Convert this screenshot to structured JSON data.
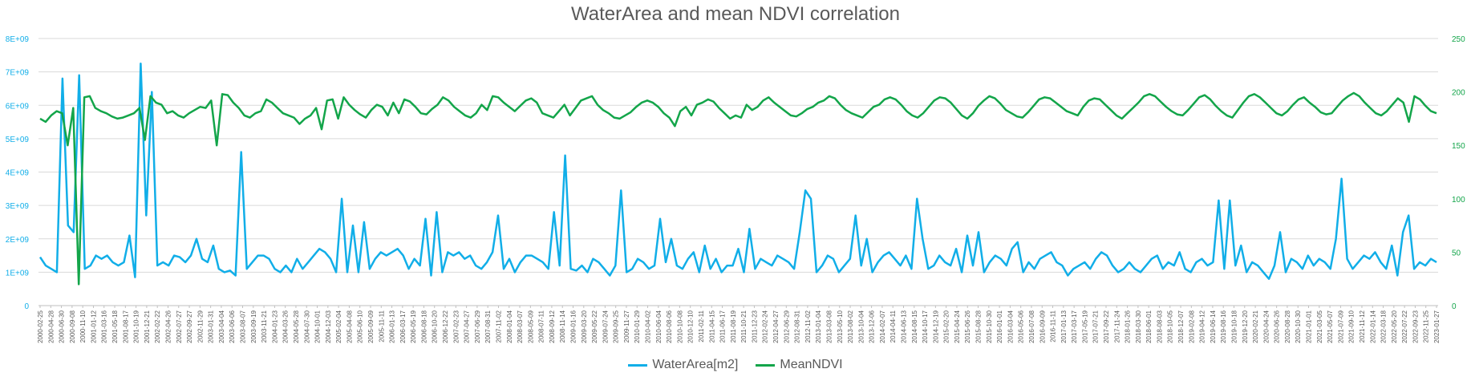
{
  "chart_data": {
    "type": "line",
    "title": "WaterArea and mean NDVI correlation",
    "xlabel": "",
    "ylabel": "",
    "y_left": {
      "min": 0,
      "max": 8000000000,
      "ticks": [
        "0",
        "1E+09",
        "2E+09",
        "3E+09",
        "4E+09",
        "5E+09",
        "6E+09",
        "7E+09",
        "8E+09"
      ],
      "color": "#11aee8"
    },
    "y_right": {
      "min": 0,
      "max": 250,
      "ticks": [
        "0",
        "50",
        "100",
        "150",
        "200",
        "250"
      ],
      "color": "#13a54a"
    },
    "grid": true,
    "legend": "bottom",
    "x_ticks": [
      "2000-02-25",
      "2000-04-28",
      "2000-06-30",
      "2000-09-08",
      "2000-11-10",
      "2001-01-12",
      "2001-03-16",
      "2001-05-18",
      "2001-08-17",
      "2001-10-19",
      "2001-12-21",
      "2002-02-22",
      "2002-04-26",
      "2002-07-27",
      "2002-09-27",
      "2002-11-29",
      "2003-01-31",
      "2003-04-04",
      "2003-06-06",
      "2003-08-07",
      "2003-09-19",
      "2003-11-21",
      "2004-01-23",
      "2004-03-26",
      "2004-05-28",
      "2004-07-30",
      "2004-10-01",
      "2004-12-03",
      "2005-02-04",
      "2005-04-08",
      "2005-06-10",
      "2005-09-09",
      "2005-11-11",
      "2006-01-13",
      "2006-03-17",
      "2006-05-19",
      "2006-08-18",
      "2006-10-20",
      "2006-12-22",
      "2007-02-23",
      "2007-04-27",
      "2007-06-29",
      "2007-08-31",
      "2007-11-02",
      "2008-01-04",
      "2008-03-07",
      "2008-05-09",
      "2008-07-11",
      "2008-09-12",
      "2008-11-14",
      "2009-01-16",
      "2009-03-20",
      "2009-05-22",
      "2009-07-24",
      "2009-09-25",
      "2009-11-27",
      "2010-01-29",
      "2010-04-02",
      "2010-06-04",
      "2010-08-06",
      "2010-10-08",
      "2010-12-10",
      "2011-02-11",
      "2011-04-15",
      "2011-06-17",
      "2011-08-19",
      "2011-10-21",
      "2011-12-23",
      "2012-02-24",
      "2012-04-27",
      "2012-06-29",
      "2012-08-31",
      "2012-11-02",
      "2013-01-04",
      "2013-03-08",
      "2013-05-10",
      "2013-08-02",
      "2013-10-04",
      "2013-12-06",
      "2014-02-07",
      "2014-04-11",
      "2014-06-13",
      "2014-08-15",
      "2014-10-17",
      "2014-12-19",
      "2015-02-20",
      "2015-04-24",
      "2015-06-26",
      "2015-08-28",
      "2015-10-30",
      "2016-01-01",
      "2016-03-04",
      "2016-05-06",
      "2016-07-08",
      "2016-09-09",
      "2016-11-11",
      "2017-01-13",
      "2017-03-17",
      "2017-05-19",
      "2017-07-21",
      "2017-09-22",
      "2017-11-24",
      "2018-01-26",
      "2018-03-30",
      "2018-06-01",
      "2018-08-03",
      "2018-10-05",
      "2018-12-07",
      "2019-02-08",
      "2019-04-12",
      "2019-06-14",
      "2019-08-16",
      "2019-10-18",
      "2019-12-20",
      "2020-02-21",
      "2020-04-24",
      "2020-06-26",
      "2020-08-28",
      "2020-10-30",
      "2021-01-01",
      "2021-03-05",
      "2021-05-07",
      "2021-07-09",
      "2021-09-10",
      "2021-11-12",
      "2022-01-14",
      "2022-03-18",
      "2022-05-20",
      "2022-07-22",
      "2022-09-23",
      "2022-11-25",
      "2023-01-27"
    ],
    "series": [
      {
        "name": "WaterArea[m2]",
        "axis": "left",
        "color": "#11aee8",
        "values": [
          1450000000.0,
          1200000000.0,
          1100000000.0,
          1000000000.0,
          6800000000.0,
          2400000000.0,
          2200000000.0,
          6900000000.0,
          1100000000.0,
          1200000000.0,
          1500000000.0,
          1400000000.0,
          1500000000.0,
          1300000000.0,
          1200000000.0,
          1300000000.0,
          2100000000.0,
          850000000.0,
          7250000000.0,
          2700000000.0,
          6400000000.0,
          1200000000.0,
          1300000000.0,
          1200000000.0,
          1500000000.0,
          1450000000.0,
          1300000000.0,
          1500000000.0,
          2000000000.0,
          1400000000.0,
          1300000000.0,
          1800000000.0,
          1100000000.0,
          1000000000.0,
          1050000000.0,
          900000000.0,
          4600000000.0,
          1100000000.0,
          1300000000.0,
          1500000000.0,
          1500000000.0,
          1400000000.0,
          1100000000.0,
          1000000000.0,
          1200000000.0,
          1000000000.0,
          1400000000.0,
          1100000000.0,
          1300000000.0,
          1500000000.0,
          1700000000.0,
          1600000000.0,
          1400000000.0,
          1000000000.0,
          3200000000.0,
          1000000000.0,
          2400000000.0,
          1000000000.0,
          2500000000.0,
          1100000000.0,
          1400000000.0,
          1600000000.0,
          1500000000.0,
          1600000000.0,
          1700000000.0,
          1500000000.0,
          1100000000.0,
          1400000000.0,
          1200000000.0,
          2600000000.0,
          900000000.0,
          2800000000.0,
          1000000000.0,
          1600000000.0,
          1500000000.0,
          1600000000.0,
          1400000000.0,
          1500000000.0,
          1200000000.0,
          1100000000.0,
          1300000000.0,
          1600000000.0,
          2700000000.0,
          1100000000.0,
          1400000000.0,
          1000000000.0,
          1300000000.0,
          1500000000.0,
          1500000000.0,
          1400000000.0,
          1300000000.0,
          1100000000.0,
          2800000000.0,
          1200000000.0,
          4500000000.0,
          1100000000.0,
          1050000000.0,
          1200000000.0,
          1000000000.0,
          1400000000.0,
          1300000000.0,
          1100000000.0,
          900000000.0,
          1200000000.0,
          3450000000.0,
          1000000000.0,
          1100000000.0,
          1400000000.0,
          1300000000.0,
          1100000000.0,
          1200000000.0,
          2600000000.0,
          1300000000.0,
          2000000000.0,
          1200000000.0,
          1100000000.0,
          1400000000.0,
          1600000000.0,
          1000000000.0,
          1800000000.0,
          1100000000.0,
          1400000000.0,
          1000000000.0,
          1200000000.0,
          1200000000.0,
          1700000000.0,
          1000000000.0,
          2300000000.0,
          1100000000.0,
          1400000000.0,
          1300000000.0,
          1200000000.0,
          1500000000.0,
          1400000000.0,
          1300000000.0,
          1100000000.0,
          2200000000.0,
          3450000000.0,
          3200000000.0,
          1000000000.0,
          1200000000.0,
          1500000000.0,
          1400000000.0,
          1000000000.0,
          1200000000.0,
          1400000000.0,
          2700000000.0,
          1200000000.0,
          2000000000.0,
          1000000000.0,
          1300000000.0,
          1500000000.0,
          1600000000.0,
          1400000000.0,
          1200000000.0,
          1500000000.0,
          1100000000.0,
          3200000000.0,
          2000000000.0,
          1100000000.0,
          1200000000.0,
          1500000000.0,
          1300000000.0,
          1200000000.0,
          1700000000.0,
          1000000000.0,
          2100000000.0,
          1200000000.0,
          2200000000.0,
          1000000000.0,
          1300000000.0,
          1500000000.0,
          1400000000.0,
          1200000000.0,
          1700000000.0,
          1900000000.0,
          1000000000.0,
          1300000000.0,
          1100000000.0,
          1400000000.0,
          1500000000.0,
          1600000000.0,
          1300000000.0,
          1200000000.0,
          900000000.0,
          1100000000.0,
          1200000000.0,
          1300000000.0,
          1100000000.0,
          1400000000.0,
          1600000000.0,
          1500000000.0,
          1200000000.0,
          1000000000.0,
          1100000000.0,
          1300000000.0,
          1100000000.0,
          1000000000.0,
          1200000000.0,
          1400000000.0,
          1500000000.0,
          1100000000.0,
          1300000000.0,
          1200000000.0,
          1600000000.0,
          1100000000.0,
          1000000000.0,
          1300000000.0,
          1400000000.0,
          1200000000.0,
          1300000000.0,
          3150000000.0,
          1100000000.0,
          3150000000.0,
          1200000000.0,
          1800000000.0,
          1000000000.0,
          1300000000.0,
          1200000000.0,
          1000000000.0,
          800000000.0,
          1200000000.0,
          2200000000.0,
          1000000000.0,
          1400000000.0,
          1300000000.0,
          1100000000.0,
          1500000000.0,
          1200000000.0,
          1400000000.0,
          1300000000.0,
          1100000000.0,
          2000000000.0,
          3800000000.0,
          1400000000.0,
          1100000000.0,
          1300000000.0,
          1500000000.0,
          1400000000.0,
          1600000000.0,
          1300000000.0,
          1100000000.0,
          1800000000.0,
          900000000.0,
          2200000000.0,
          2700000000.0,
          1100000000.0,
          1300000000.0,
          1200000000.0,
          1400000000.0,
          1300000000.0
        ]
      },
      {
        "name": "MeanNDVI",
        "axis": "right",
        "color": "#13a54a",
        "values": [
          175,
          172,
          178,
          182,
          180,
          150,
          185,
          20,
          195,
          196,
          185,
          182,
          180,
          177,
          175,
          176,
          178,
          180,
          185,
          155,
          196,
          190,
          188,
          180,
          182,
          178,
          176,
          180,
          183,
          186,
          185,
          192,
          150,
          198,
          197,
          190,
          185,
          178,
          176,
          180,
          182,
          193,
          190,
          185,
          180,
          178,
          176,
          170,
          175,
          178,
          185,
          165,
          192,
          193,
          175,
          195,
          188,
          183,
          179,
          176,
          183,
          188,
          186,
          178,
          190,
          180,
          193,
          191,
          186,
          180,
          179,
          184,
          188,
          195,
          192,
          186,
          182,
          178,
          176,
          180,
          188,
          183,
          196,
          195,
          190,
          186,
          182,
          187,
          192,
          194,
          190,
          180,
          178,
          176,
          182,
          188,
          178,
          185,
          192,
          194,
          196,
          188,
          183,
          180,
          176,
          175,
          178,
          181,
          186,
          190,
          192,
          190,
          186,
          180,
          176,
          168,
          182,
          186,
          178,
          188,
          190,
          193,
          191,
          185,
          180,
          175,
          178,
          176,
          188,
          183,
          186,
          192,
          195,
          190,
          186,
          182,
          178,
          177,
          180,
          184,
          186,
          190,
          192,
          196,
          194,
          188,
          183,
          180,
          178,
          176,
          181,
          186,
          188,
          193,
          195,
          193,
          188,
          182,
          178,
          176,
          180,
          186,
          192,
          195,
          194,
          190,
          184,
          178,
          175,
          180,
          187,
          192,
          196,
          194,
          189,
          183,
          180,
          177,
          176,
          181,
          187,
          193,
          195,
          194,
          190,
          186,
          182,
          180,
          178,
          186,
          192,
          194,
          193,
          188,
          183,
          178,
          175,
          180,
          185,
          190,
          196,
          198,
          196,
          191,
          186,
          182,
          179,
          178,
          183,
          189,
          195,
          197,
          193,
          187,
          182,
          178,
          176,
          183,
          190,
          196,
          198,
          195,
          190,
          185,
          180,
          178,
          182,
          188,
          193,
          195,
          190,
          186,
          181,
          179,
          180,
          186,
          192,
          196,
          199,
          196,
          190,
          185,
          180,
          178,
          182,
          188,
          194,
          190,
          172,
          196,
          193,
          187,
          182,
          180
        ]
      }
    ]
  }
}
